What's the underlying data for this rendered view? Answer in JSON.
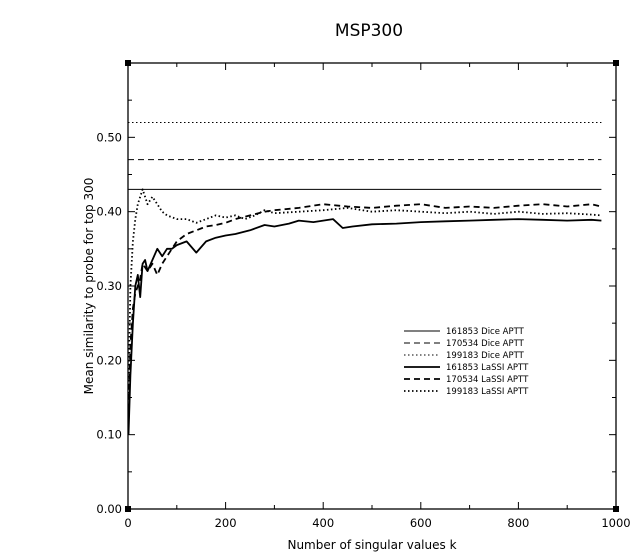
{
  "chart_data": {
    "type": "line",
    "title": "MSP300",
    "xlabel": "Number of singular values k",
    "ylabel": "Mean similarity to probe for top 300",
    "xlim": [
      0,
      1000
    ],
    "ylim": [
      0.0,
      0.6
    ],
    "xticks": [
      0,
      200,
      400,
      600,
      800,
      1000
    ],
    "xtick_labels": [
      "0",
      "200",
      "400",
      "600",
      "800",
      "1000"
    ],
    "yticks": [
      0.0,
      0.1,
      0.2,
      0.3,
      0.4,
      0.5
    ],
    "ytick_labels": [
      "0.00",
      "0.10",
      "0.20",
      "0.30",
      "0.40",
      "0.50"
    ],
    "grid": false,
    "legend_position": "center-right",
    "series": [
      {
        "name": "161853 Dice APTT",
        "style": "solid",
        "weight": "thin",
        "x": [
          0,
          970
        ],
        "y": [
          0.43,
          0.43
        ]
      },
      {
        "name": "170534 Dice APTT",
        "style": "dashed",
        "weight": "thin",
        "x": [
          0,
          970
        ],
        "y": [
          0.47,
          0.47
        ]
      },
      {
        "name": "199183 Dice APTT",
        "style": "dotted",
        "weight": "thin",
        "x": [
          0,
          970
        ],
        "y": [
          0.52,
          0.52
        ]
      },
      {
        "name": "161853 LaSSI APTT",
        "style": "solid",
        "weight": "thick",
        "x": [
          1,
          5,
          10,
          15,
          20,
          25,
          30,
          35,
          40,
          50,
          60,
          70,
          80,
          90,
          100,
          120,
          140,
          160,
          180,
          200,
          220,
          250,
          280,
          300,
          330,
          350,
          380,
          400,
          420,
          440,
          460,
          500,
          550,
          600,
          650,
          700,
          750,
          800,
          850,
          900,
          950,
          970
        ],
        "y": [
          0.1,
          0.18,
          0.25,
          0.3,
          0.315,
          0.285,
          0.33,
          0.335,
          0.32,
          0.335,
          0.35,
          0.34,
          0.35,
          0.35,
          0.355,
          0.36,
          0.345,
          0.36,
          0.365,
          0.368,
          0.37,
          0.375,
          0.382,
          0.38,
          0.384,
          0.388,
          0.386,
          0.388,
          0.39,
          0.378,
          0.38,
          0.383,
          0.384,
          0.386,
          0.387,
          0.388,
          0.389,
          0.39,
          0.389,
          0.388,
          0.389,
          0.388
        ]
      },
      {
        "name": "170534 LaSSI APTT",
        "style": "dashed",
        "weight": "thick",
        "x": [
          1,
          5,
          10,
          15,
          20,
          25,
          30,
          35,
          40,
          50,
          60,
          70,
          80,
          90,
          100,
          120,
          140,
          160,
          180,
          200,
          220,
          250,
          280,
          300,
          350,
          400,
          450,
          500,
          550,
          600,
          650,
          700,
          750,
          800,
          850,
          900,
          950,
          970
        ],
        "y": [
          0.12,
          0.22,
          0.27,
          0.29,
          0.3,
          0.31,
          0.33,
          0.325,
          0.32,
          0.33,
          0.315,
          0.33,
          0.34,
          0.35,
          0.36,
          0.37,
          0.375,
          0.38,
          0.382,
          0.385,
          0.39,
          0.395,
          0.4,
          0.402,
          0.405,
          0.41,
          0.407,
          0.405,
          0.408,
          0.41,
          0.405,
          0.407,
          0.405,
          0.408,
          0.41,
          0.407,
          0.41,
          0.407
        ]
      },
      {
        "name": "199183 LaSSI APTT",
        "style": "dotted",
        "weight": "thick",
        "x": [
          1,
          5,
          10,
          15,
          20,
          25,
          30,
          35,
          40,
          50,
          60,
          70,
          80,
          100,
          120,
          140,
          160,
          180,
          200,
          220,
          240,
          260,
          280,
          300,
          350,
          400,
          450,
          500,
          550,
          600,
          650,
          700,
          750,
          800,
          850,
          900,
          950,
          970
        ],
        "y": [
          0.15,
          0.3,
          0.36,
          0.39,
          0.41,
          0.42,
          0.43,
          0.42,
          0.41,
          0.42,
          0.41,
          0.4,
          0.395,
          0.39,
          0.39,
          0.385,
          0.39,
          0.395,
          0.392,
          0.395,
          0.39,
          0.395,
          0.402,
          0.398,
          0.4,
          0.402,
          0.405,
          0.4,
          0.402,
          0.4,
          0.398,
          0.4,
          0.397,
          0.4,
          0.397,
          0.398,
          0.396,
          0.395
        ]
      }
    ]
  }
}
